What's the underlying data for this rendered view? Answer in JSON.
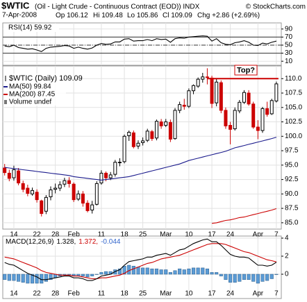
{
  "header": {
    "symbol": "$WTIC",
    "description": "(Oil - Light Crude - Continuous Contract (EOD)) INDX",
    "source": "© StockCharts.com",
    "date": "7-Apr-2008",
    "quote": [
      "Op 106.12",
      "Hi 109.48",
      "Lo 105.86",
      "Cl 109.09",
      "Chg +2.86 (+2.69%)"
    ]
  },
  "chart_data": [
    {
      "type": "line",
      "title": "RSI(14) 59.92",
      "ylim": [
        0,
        100
      ],
      "yticks": [
        90,
        70,
        50,
        30,
        10
      ],
      "levels": [
        70,
        50,
        30
      ],
      "series": [
        {
          "color": "#000000",
          "type": "line",
          "values": [
            48,
            46,
            50,
            44,
            42,
            40,
            41,
            38,
            34,
            42,
            45,
            46,
            47,
            49,
            48,
            42,
            45,
            42,
            40,
            43,
            50,
            54,
            52,
            53,
            58,
            58,
            65,
            66,
            60,
            61,
            61,
            64,
            61,
            66,
            64,
            65,
            57,
            66,
            68,
            67,
            70,
            71,
            72,
            73,
            72,
            60,
            66,
            56,
            52,
            51,
            56,
            58,
            61,
            57,
            50,
            49,
            55,
            53,
            57,
            59.92
          ]
        }
      ]
    },
    {
      "type": "candlestick",
      "title": "$WTIC (Daily) 109.09",
      "volume_label": "Volume undef",
      "up_color": "#000000",
      "down_color": "#cc0000",
      "categories": [
        null,
        null,
        "14",
        null,
        null,
        null,
        null,
        "22",
        null,
        null,
        null,
        "28",
        null,
        null,
        null,
        "Feb",
        null,
        null,
        null,
        null,
        null,
        "11",
        null,
        null,
        null,
        null,
        "18",
        null,
        null,
        null,
        "25",
        null,
        null,
        null,
        null,
        "Mar",
        null,
        null,
        null,
        null,
        "10",
        null,
        null,
        null,
        null,
        "17",
        null,
        null,
        null,
        "24",
        null,
        null,
        null,
        null,
        null,
        "Apr",
        null,
        null,
        null,
        "7"
      ],
      "open": [
        94.5,
        93.6,
        92.8,
        94.0,
        91.8,
        91.0,
        90.0,
        90.3,
        88.8,
        87.0,
        89.5,
        90.8,
        91.0,
        91.7,
        92.3,
        91.7,
        89.1,
        90.0,
        88.4,
        87.2,
        88.2,
        91.9,
        93.6,
        92.8,
        93.4,
        95.5,
        95.6,
        100.1,
        100.6,
        98.3,
        98.9,
        99.3,
        100.8,
        99.7,
        102.5,
        101.9,
        102.4,
        99.6,
        104.5,
        105.4,
        105.2,
        107.9,
        108.7,
        109.9,
        110.3,
        110.1,
        105.8,
        109.3,
        104.5,
        101.9,
        101.3,
        104.4,
        105.9,
        107.5,
        105.6,
        101.6,
        101.0,
        104.8,
        103.9,
        106.12
      ],
      "high": [
        95.2,
        94.2,
        94.9,
        94.5,
        92.3,
        91.6,
        91.1,
        90.8,
        89.0,
        89.8,
        91.3,
        91.8,
        92.2,
        92.8,
        92.9,
        92.0,
        90.6,
        90.5,
        88.9,
        88.8,
        92.2,
        94.1,
        93.9,
        93.8,
        95.9,
        96.2,
        100.3,
        101.0,
        101.0,
        99.3,
        99.8,
        101.3,
        101.1,
        102.9,
        103.0,
        103.0,
        102.9,
        104.9,
        106.0,
        106.5,
        108.3,
        109.0,
        110.2,
        111.0,
        111.8,
        110.5,
        110.0,
        109.7,
        105.0,
        102.5,
        105.0,
        106.3,
        108.0,
        108.0,
        106.0,
        102.8,
        105.1,
        106.0,
        106.5,
        109.48
      ],
      "low": [
        93.2,
        92.2,
        92.3,
        91.5,
        90.3,
        89.6,
        89.7,
        88.5,
        86.1,
        86.5,
        88.9,
        90.1,
        90.5,
        91.2,
        91.1,
        88.6,
        88.8,
        87.8,
        86.8,
        86.6,
        88.0,
        91.6,
        92.2,
        92.4,
        93.0,
        94.8,
        95.3,
        99.2,
        97.9,
        97.8,
        98.4,
        99.0,
        99.2,
        99.3,
        101.3,
        101.6,
        99.0,
        99.4,
        104.0,
        104.6,
        104.9,
        107.3,
        108.4,
        109.3,
        109.0,
        104.9,
        105.2,
        104.0,
        101.3,
        98.6,
        101.0,
        104.0,
        105.6,
        105.3,
        101.3,
        99.5,
        100.6,
        103.4,
        103.7,
        105.86
      ],
      "close": [
        93.7,
        92.7,
        94.2,
        91.9,
        90.8,
        90.1,
        90.6,
        89.0,
        86.6,
        89.4,
        90.7,
        91.0,
        91.6,
        92.3,
        91.8,
        89.0,
        90.0,
        88.4,
        87.1,
        88.1,
        91.8,
        93.6,
        92.8,
        93.3,
        95.5,
        95.5,
        100.0,
        100.7,
        98.2,
        98.8,
        99.2,
        100.9,
        99.6,
        102.6,
        101.8,
        102.5,
        99.5,
        104.5,
        105.5,
        105.2,
        107.9,
        108.8,
        109.9,
        110.3,
        110.2,
        105.7,
        109.4,
        104.5,
        101.8,
        101.2,
        104.5,
        105.9,
        107.6,
        105.6,
        101.6,
        101.0,
        104.8,
        103.8,
        106.2,
        109.09
      ],
      "ylim": [
        83.9,
        112.2
      ],
      "yticks": [
        {
          "value": 110,
          "label": "110.0"
        },
        {
          "value": 107.5,
          "label": "107.5"
        },
        {
          "value": 105,
          "label": "105.0"
        },
        {
          "value": 102.5,
          "label": "102.5"
        },
        {
          "value": 100,
          "label": "100.0"
        },
        {
          "value": 97.5,
          "label": "97.5"
        },
        {
          "value": 95,
          "label": "95.0"
        },
        {
          "value": 92.5,
          "label": "92.5"
        },
        {
          "value": 90,
          "label": "90.0"
        },
        {
          "value": 87.5,
          "label": "87.5"
        },
        {
          "value": 85,
          "label": "85.0"
        }
      ],
      "annotations": [
        {
          "text": "Top?",
          "value": 110,
          "color": "#cc0000"
        }
      ],
      "series": [
        {
          "name": "MA(50) 99.84",
          "color": "#1a1a8c",
          "type": "line",
          "values": [
            94.6,
            94.5,
            94.4,
            94.3,
            94.2,
            94.1,
            94.0,
            93.9,
            93.8,
            93.7,
            93.6,
            93.5,
            93.4,
            93.3,
            93.2,
            93.0,
            92.9,
            92.8,
            92.7,
            92.6,
            92.5,
            92.4,
            92.5,
            92.6,
            92.7,
            92.8,
            92.9,
            93.0,
            93.2,
            93.4,
            93.6,
            93.8,
            94.0,
            94.2,
            94.4,
            94.6,
            94.8,
            95.0,
            95.2,
            95.5,
            95.8,
            96.0,
            96.2,
            96.4,
            96.6,
            96.8,
            97.0,
            97.2,
            97.4,
            97.7,
            98.0,
            98.2,
            98.4,
            98.6,
            98.8,
            99.0,
            99.2,
            99.4,
            99.6,
            99.84
          ]
        },
        {
          "name": "MA(200) 87.45",
          "color": "#cc0000",
          "type": "line",
          "values": [
            null,
            null,
            null,
            null,
            null,
            null,
            null,
            null,
            null,
            null,
            null,
            null,
            null,
            null,
            null,
            null,
            null,
            null,
            null,
            null,
            null,
            null,
            null,
            null,
            null,
            null,
            null,
            null,
            null,
            null,
            null,
            null,
            null,
            null,
            null,
            null,
            null,
            null,
            null,
            null,
            null,
            null,
            null,
            null,
            null,
            84.9,
            85.0,
            85.2,
            85.4,
            85.5,
            85.7,
            85.9,
            86.0,
            86.2,
            86.4,
            86.6,
            86.8,
            87.0,
            87.2,
            87.45
          ]
        }
      ]
    },
    {
      "type": "macd",
      "title_parts": [
        {
          "text": "MACD(12,26,9)",
          "color": "#000000"
        },
        {
          "text": "1.328,",
          "color": "#000000"
        },
        {
          "text": "1.372,",
          "color": "#cc0000"
        },
        {
          "text": "-0.044",
          "color": "#3366cc"
        }
      ],
      "ylim": [
        -1.6,
        4.2
      ],
      "yticks": [
        4,
        2,
        0
      ],
      "series": [
        {
          "color": "#5b9bd5",
          "type": "bar",
          "values": [
            -0.6,
            -0.7,
            -0.7,
            -0.8,
            -0.9,
            -1.0,
            -1.0,
            -1.0,
            -1.0,
            -0.8,
            -0.6,
            -0.4,
            -0.2,
            -0.1,
            -0.1,
            -0.2,
            -0.2,
            -0.2,
            -0.3,
            -0.2,
            0.0,
            0.2,
            0.3,
            0.3,
            0.5,
            0.6,
            0.9,
            1.0,
            0.9,
            0.8,
            0.7,
            0.7,
            0.6,
            0.6,
            0.5,
            0.5,
            0.2,
            0.4,
            0.6,
            0.5,
            0.6,
            0.7,
            0.7,
            0.7,
            0.6,
            0.2,
            0.2,
            -0.2,
            -0.6,
            -0.9,
            -0.9,
            -0.8,
            -0.6,
            -0.6,
            -0.8,
            -1.0,
            -0.8,
            -0.7,
            -0.5,
            -0.044
          ]
        },
        {
          "color": "#cc0000",
          "type": "line",
          "values": [
            1.9,
            1.8,
            1.7,
            1.5,
            1.3,
            1.1,
            0.9,
            0.7,
            0.4,
            0.2,
            0.1,
            0.0,
            -0.1,
            -0.1,
            -0.1,
            -0.2,
            -0.2,
            -0.3,
            -0.4,
            -0.5,
            -0.5,
            -0.4,
            -0.4,
            -0.3,
            -0.2,
            -0.1,
            0.1,
            0.4,
            0.6,
            0.8,
            1.0,
            1.2,
            1.3,
            1.5,
            1.7,
            1.8,
            1.9,
            2.0,
            2.1,
            2.3,
            2.5,
            2.7,
            2.9,
            3.1,
            3.3,
            3.4,
            3.4,
            3.4,
            3.3,
            3.1,
            2.9,
            2.7,
            2.5,
            2.4,
            2.2,
            2.0,
            1.8,
            1.6,
            1.5,
            1.372
          ]
        },
        {
          "color": "#000000",
          "type": "line",
          "values": [
            1.3,
            1.1,
            1.0,
            0.7,
            0.4,
            0.1,
            -0.1,
            -0.3,
            -0.6,
            -0.6,
            -0.5,
            -0.4,
            -0.3,
            -0.2,
            -0.2,
            -0.4,
            -0.4,
            -0.5,
            -0.7,
            -0.7,
            -0.5,
            -0.2,
            -0.1,
            0.0,
            0.3,
            0.5,
            1.0,
            1.4,
            1.5,
            1.6,
            1.7,
            1.9,
            1.9,
            2.1,
            2.2,
            2.3,
            2.1,
            2.4,
            2.7,
            2.8,
            3.1,
            3.4,
            3.6,
            3.8,
            3.9,
            3.6,
            3.6,
            3.2,
            2.7,
            2.2,
            2.0,
            1.9,
            1.9,
            1.8,
            1.4,
            1.0,
            1.0,
            0.9,
            1.0,
            1.328
          ]
        }
      ]
    }
  ]
}
